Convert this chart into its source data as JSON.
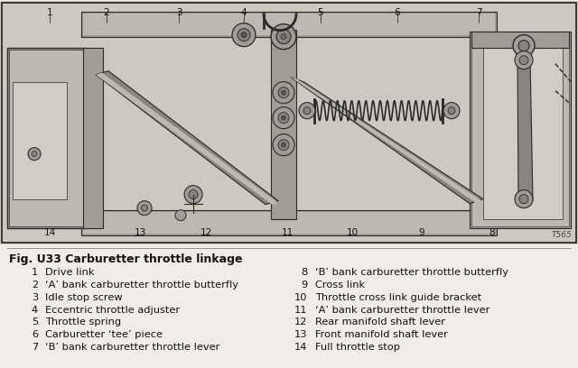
{
  "title": "Fig. U33 Carburetter throttle linkage",
  "title_fontsize": 9.0,
  "legend_fontsize": 8.2,
  "bg_color": "#f0ede8",
  "text_bg_color": "#f0ede8",
  "border_color": "#333333",
  "ref_code": "T565",
  "items_left": [
    [
      1,
      "Drive link"
    ],
    [
      2,
      "‘A’ bank carburetter throttle butterfly"
    ],
    [
      3,
      "Idle stop screw"
    ],
    [
      4,
      "Eccentric throttle adjuster"
    ],
    [
      5,
      "Throttle spring"
    ],
    [
      6,
      "Carburetter ‘tee’ piece"
    ],
    [
      7,
      "‘B’ bank carburetter throttle lever"
    ]
  ],
  "items_right": [
    [
      8,
      "‘B’ bank carburetter throttle butterfly"
    ],
    [
      9,
      "Cross link"
    ],
    [
      10,
      "Throttle cross link guide bracket"
    ],
    [
      11,
      "‘A’ bank carburetter throttle lever"
    ],
    [
      12,
      "Rear manifold shaft lever"
    ],
    [
      13,
      "Front manifold shaft lever"
    ],
    [
      14,
      "Full throttle stop"
    ]
  ],
  "num_top": {
    "1": 55,
    "2": 118,
    "3": 198,
    "4": 270,
    "5": 355,
    "6": 440,
    "7": 530
  },
  "num_bot": {
    "14": 55,
    "13": 155,
    "12": 228,
    "11": 318,
    "10": 390,
    "9": 467,
    "8": 545
  }
}
